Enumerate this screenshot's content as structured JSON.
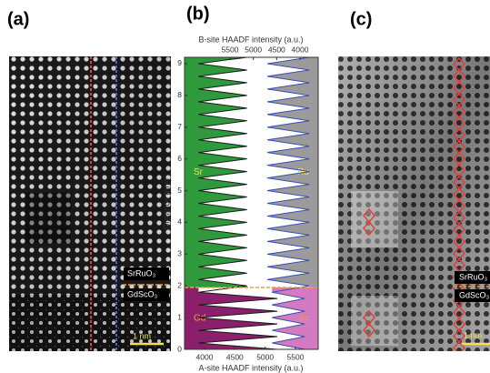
{
  "panel_labels": [
    "(a)",
    "(b)",
    "(c)"
  ],
  "panel_a": {
    "layers": [
      "SrRuO₃",
      "GdScO₃"
    ],
    "scale_bar": "1 nm"
  },
  "panel_c": {
    "layers": [
      "SrRuO₃",
      "GdScO₃"
    ],
    "scale_bar": "1 nm"
  },
  "chart_data": {
    "type": "line",
    "orientation": "vertical",
    "top_axis_label": "B-site HAADF intensity (a.u.)",
    "bottom_axis_label": "A-site HAADF intensity (a.u.)",
    "distance_label": "Distance (nm)",
    "x": [
      0,
      0.2,
      0.4,
      0.6,
      0.8,
      1.0,
      1.2,
      1.4,
      1.6,
      1.8,
      2.0,
      2.2,
      2.4,
      2.6,
      2.8,
      3.0,
      3.2,
      3.4,
      3.6,
      3.8,
      4.0,
      4.2,
      4.4,
      4.6,
      4.8,
      5.0,
      5.2,
      5.4,
      5.6,
      5.8,
      6.0,
      6.2,
      6.4,
      6.6,
      6.8,
      7.0,
      7.2,
      7.4,
      7.6,
      7.8,
      8.0,
      8.2,
      8.4,
      8.6,
      8.8,
      9.0,
      9.2
    ],
    "xlim": [
      0,
      9.2
    ],
    "xticks": [
      0,
      1,
      2,
      3,
      4,
      5,
      6,
      7,
      8,
      9
    ],
    "ylim": [
      3670,
      5875
    ],
    "yticks": [
      4000,
      4500,
      5000,
      5500
    ],
    "y2lim": [
      6475,
      3610
    ],
    "y2ticks": [
      5500,
      5000,
      4500,
      4000
    ],
    "series": [
      {
        "color": "#1a1a1a",
        "axis": "y",
        "values": [
          5200,
          3900,
          5200,
          3900,
          5200,
          3900,
          5200,
          3900,
          5200,
          3900,
          4700,
          3900,
          4700,
          3900,
          4700,
          3900,
          4700,
          3900,
          4700,
          3900,
          4700,
          3900,
          4700,
          3900,
          4700,
          3900,
          4700,
          3900,
          4700,
          3900,
          4700,
          3900,
          4700,
          3900,
          4700,
          3900,
          4700,
          3900,
          4700,
          3900,
          4700,
          3900,
          4700,
          3900,
          4700,
          3900,
          4700
        ]
      },
      {
        "color": "#3a4fb0",
        "axis": "y2",
        "values": [
          3900,
          4600,
          3900,
          4600,
          3900,
          4600,
          3900,
          4600,
          3900,
          4600,
          3800,
          4700,
          3800,
          4700,
          3800,
          4700,
          3800,
          4700,
          3800,
          4700,
          3800,
          4700,
          3800,
          4700,
          3800,
          4700,
          3800,
          4700,
          3800,
          4700,
          3800,
          4700,
          3800,
          4700,
          3800,
          4700,
          3800,
          4700,
          3800,
          4700,
          3800,
          4700,
          3800,
          4700,
          3800,
          4700,
          3800
        ]
      }
    ],
    "regions": [
      {
        "from": 0,
        "to": 1.95,
        "a_label": "Gd",
        "b_label": "Sc",
        "a_color": "#8c1f6c",
        "b_color": "#d47ac0",
        "label_color": "#f0a030"
      },
      {
        "from": 1.95,
        "to": 9.2,
        "a_label": "Sr",
        "b_label": "Ru",
        "a_color": "#2f9a3c",
        "b_color": "#9b9b9b",
        "label_color": "#f2e14a"
      }
    ],
    "interface_color": "#f0a030"
  }
}
